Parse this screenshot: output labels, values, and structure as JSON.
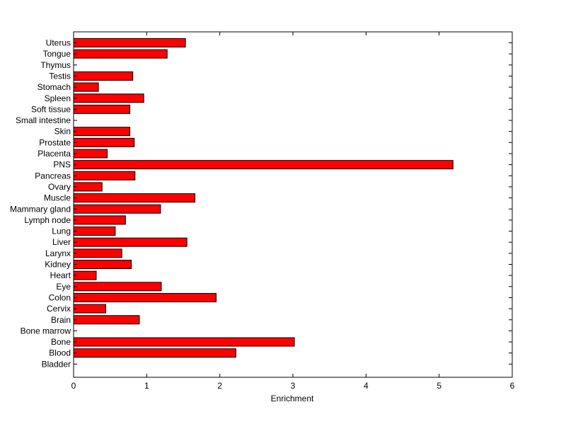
{
  "chart_data": {
    "type": "bar",
    "orientation": "horizontal",
    "title": "",
    "xlabel": "Enrichment",
    "ylabel": "",
    "xlim": [
      0,
      6
    ],
    "xticks": [
      "0",
      "1",
      "2",
      "3",
      "4",
      "5",
      "6"
    ],
    "grid": false,
    "legend": "none",
    "bar_color": "#ff0000",
    "edge_color": "#000000",
    "categories": [
      "Uterus",
      "Tongue",
      "Thymus",
      "Testis",
      "Stomach",
      "Spleen",
      "Soft tissue",
      "Small intestine",
      "Skin",
      "Prostate",
      "Placenta",
      "PNS",
      "Pancreas",
      "Ovary",
      "Muscle",
      "Mammary gland",
      "Lymph node",
      "Lung",
      "Liver",
      "Larynx",
      "Kidney",
      "Heart",
      "Eye",
      "Colon",
      "Cervix",
      "Brain",
      "Bone marrow",
      "Bone",
      "Blood",
      "Bladder"
    ],
    "values": [
      1.53,
      1.28,
      0,
      0.81,
      0.34,
      0.96,
      0.77,
      0,
      0.77,
      0.83,
      0.46,
      5.19,
      0.84,
      0.39,
      1.66,
      1.19,
      0.71,
      0.57,
      1.55,
      0.66,
      0.79,
      0.31,
      1.2,
      1.95,
      0.44,
      0.9,
      0,
      3.02,
      2.22,
      0
    ]
  }
}
